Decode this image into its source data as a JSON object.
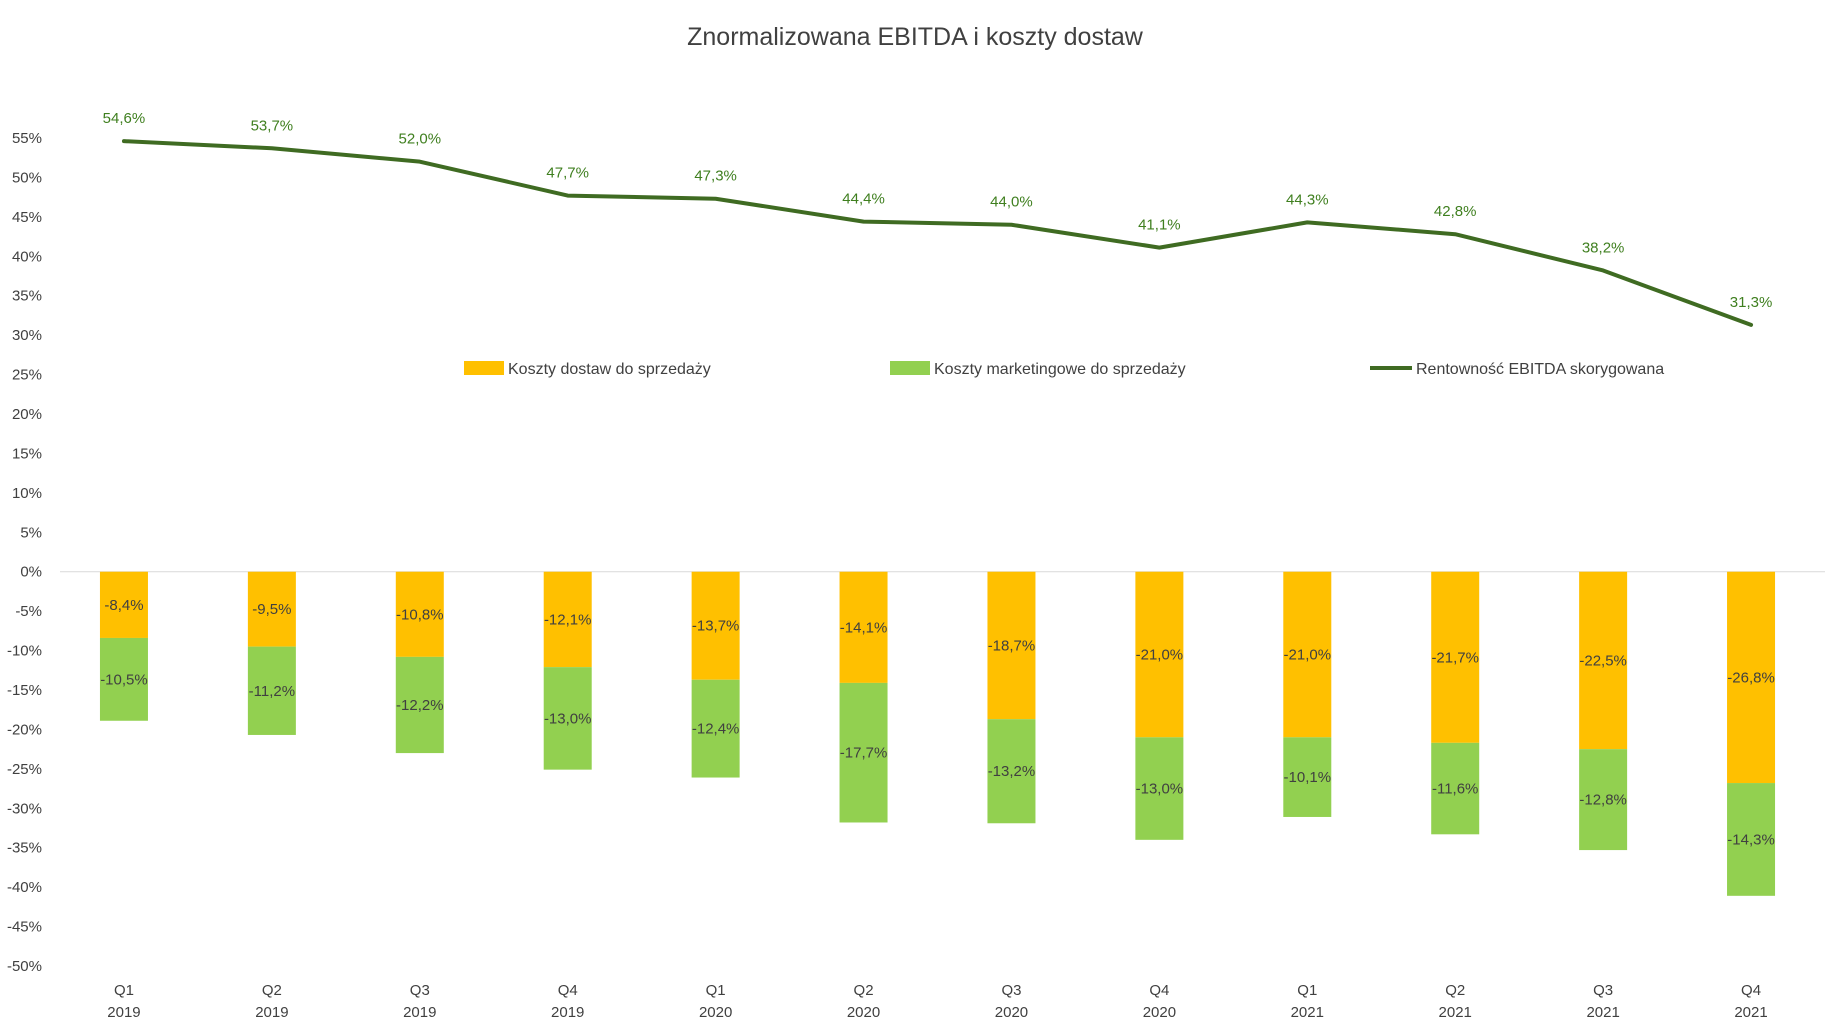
{
  "chart_data": {
    "type": "bar",
    "title": "Znormalizowana EBITDA i koszty dostaw",
    "categories": [
      [
        "Q1",
        "2019"
      ],
      [
        "Q2",
        "2019"
      ],
      [
        "Q3",
        "2019"
      ],
      [
        "Q4",
        "2019"
      ],
      [
        "Q1",
        "2020"
      ],
      [
        "Q2",
        "2020"
      ],
      [
        "Q3",
        "2020"
      ],
      [
        "Q4",
        "2020"
      ],
      [
        "Q1",
        "2021"
      ],
      [
        "Q2",
        "2021"
      ],
      [
        "Q3",
        "2021"
      ],
      [
        "Q4",
        "2021"
      ]
    ],
    "ylim": [
      -50,
      55
    ],
    "yticks": [
      55,
      50,
      45,
      40,
      35,
      30,
      25,
      20,
      15,
      10,
      5,
      0,
      -5,
      -10,
      -15,
      -20,
      -25,
      -30,
      -35,
      -40,
      -45,
      -50
    ],
    "ytick_labels": [
      "55%",
      "50%",
      "45%",
      "40%",
      "35%",
      "30%",
      "25%",
      "20%",
      "15%",
      "10%",
      "5%",
      "0%",
      "-5%",
      "-10%",
      "-15%",
      "-20%",
      "-25%",
      "-30%",
      "-35%",
      "-40%",
      "-45%",
      "-50%"
    ],
    "legend_position": "center",
    "grid": false,
    "series": [
      {
        "name": "Koszty dostaw do sprzedaży",
        "kind": "stacked-bar",
        "color": "#ffc000",
        "values": [
          -8.4,
          -9.5,
          -10.8,
          -12.1,
          -13.7,
          -14.1,
          -18.7,
          -21.0,
          -21.0,
          -21.7,
          -22.5,
          -26.8
        ],
        "labels": [
          "-8,4%",
          "-9,5%",
          "-10,8%",
          "-12,1%",
          "-13,7%",
          "-14,1%",
          "-18,7%",
          "-21,0%",
          "-21,0%",
          "-21,7%",
          "-22,5%",
          "-26,8%"
        ]
      },
      {
        "name": "Koszty marketingowe do sprzedaży",
        "kind": "stacked-bar",
        "color": "#92d050",
        "values": [
          -10.5,
          -11.2,
          -12.2,
          -13.0,
          -12.4,
          -17.7,
          -13.2,
          -13.0,
          -10.1,
          -11.6,
          -12.8,
          -14.3
        ],
        "labels": [
          "-10,5%",
          "-11,2%",
          "-12,2%",
          "-13,0%",
          "-12,4%",
          "-17,7%",
          "-13,2%",
          "-13,0%",
          "-10,1%",
          "-11,6%",
          "-12,8%",
          "-14,3%"
        ]
      },
      {
        "name": "Rentowność EBITDA skorygowana",
        "kind": "line",
        "color": "#3f6b22",
        "values": [
          54.6,
          53.7,
          52.0,
          47.7,
          47.3,
          44.4,
          44.0,
          41.1,
          44.3,
          42.8,
          38.2,
          31.3
        ],
        "labels": [
          "54,6%",
          "53,7%",
          "52,0%",
          "47,7%",
          "47,3%",
          "44,4%",
          "44,0%",
          "41,1%",
          "44,3%",
          "42,8%",
          "38,2%",
          "31,3%"
        ]
      }
    ]
  }
}
